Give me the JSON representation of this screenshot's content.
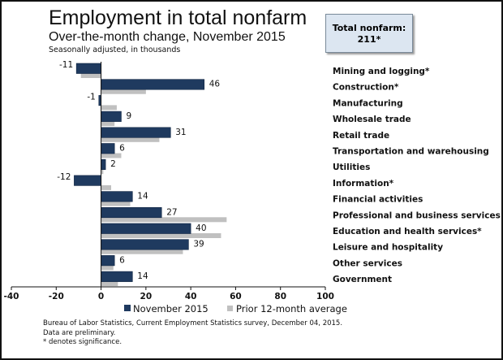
{
  "title": "Employment in total nonfarm",
  "subtitle": "Over-the-month change, November 2015",
  "note": "Seasonally adjusted, in thousands",
  "total_box": {
    "label": "Total nonfarm:",
    "value": "211*"
  },
  "footer": [
    "Bureau of Labor Statistics, Current Employment Statistics survey, December 04, 2015.",
    "Data are preliminary.",
    "* denotes significance."
  ],
  "chart_data": {
    "type": "bar",
    "orientation": "horizontal",
    "categories": [
      "Mining and logging*",
      "Construction*",
      "Manufacturing",
      "Wholesale trade",
      "Retail trade",
      "Transportation and warehousing",
      "Utilities",
      "Information*",
      "Financial activities",
      "Professional and business services",
      "Education and health services*",
      "Leisure and hospitality",
      "Other services",
      "Government"
    ],
    "series": [
      {
        "name": "November 2015",
        "color": "#1f3a5f",
        "values": [
          -11,
          46,
          -1,
          9,
          31,
          6,
          2,
          -12,
          14,
          27,
          40,
          39,
          6,
          14
        ],
        "labels": [
          "-11",
          "46",
          "-1",
          "9",
          "31",
          "6",
          "2",
          "-12",
          "14",
          "27",
          "40",
          "39",
          "6",
          "14"
        ]
      },
      {
        "name": "Prior 12-month average",
        "color": "#c0c0c0",
        "values": [
          -9,
          20,
          7,
          6,
          26,
          9,
          1,
          4.5,
          13,
          56,
          53.5,
          36.5,
          5.5,
          7.5
        ]
      }
    ],
    "xlim": [
      -40,
      100
    ],
    "xticks": [
      "-40",
      "-20",
      "0",
      "20",
      "40",
      "60",
      "80",
      "100"
    ],
    "legend": "bottom",
    "grid": false
  }
}
